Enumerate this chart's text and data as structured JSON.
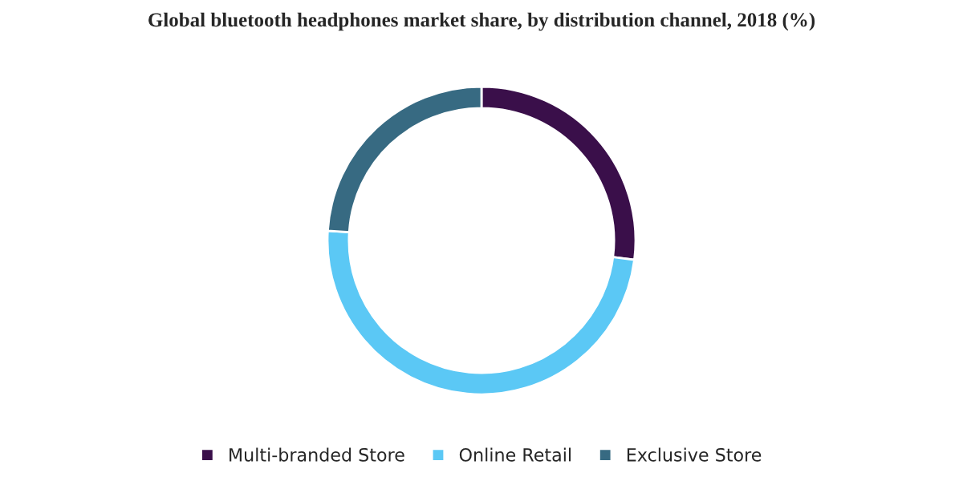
{
  "chart_data": {
    "type": "donut",
    "title": "Global bluetooth headphones market share, by distribution channel, 2018 (%)",
    "categories": [
      "Multi-branded Store",
      "Online Retail",
      "Exclusive Store"
    ],
    "values": [
      27,
      49,
      24
    ],
    "colors": [
      "#3a0f4a",
      "#5bc8f5",
      "#376a82"
    ],
    "legend": "bottom"
  }
}
